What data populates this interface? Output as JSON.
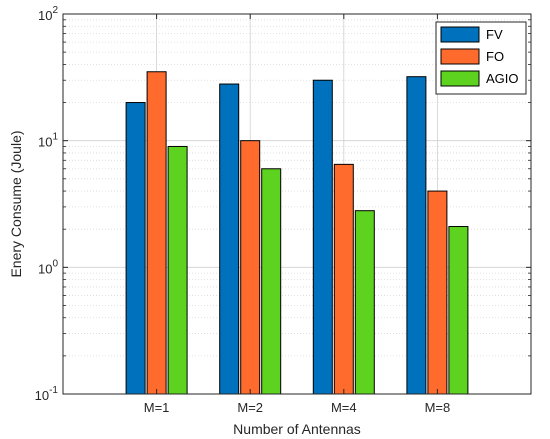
{
  "chart_data": {
    "type": "bar",
    "xlabel": "Number of Antennas",
    "ylabel": "Enery Consume (Joule)",
    "yscale": "log",
    "ylim": [
      0.1,
      100
    ],
    "yticks": [
      {
        "value": 0.1,
        "base": "10",
        "exp": "-1"
      },
      {
        "value": 1,
        "base": "10",
        "exp": "0"
      },
      {
        "value": 10,
        "base": "10",
        "exp": "1"
      },
      {
        "value": 100,
        "base": "10",
        "exp": "2"
      }
    ],
    "categories": [
      "M=1",
      "M=2",
      "M=4",
      "M=8"
    ],
    "series": [
      {
        "name": "FV",
        "color": "#0072BD",
        "values": [
          20,
          28,
          30,
          32
        ]
      },
      {
        "name": "FO",
        "color": "#FF6B2C",
        "values": [
          35,
          10,
          6.5,
          4
        ]
      },
      {
        "name": "AGIO",
        "color": "#5DD31F",
        "values": [
          9,
          6,
          2.8,
          2.1
        ]
      }
    ],
    "grid": true,
    "legend_position": "top-right"
  }
}
